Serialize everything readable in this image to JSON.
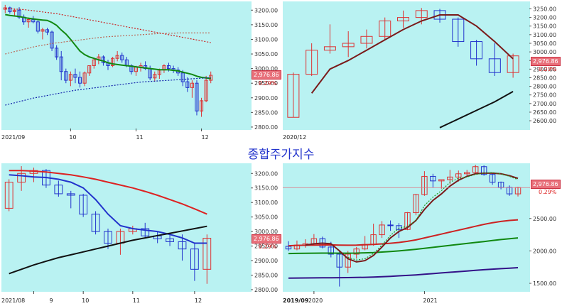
{
  "title": "종합주가지수",
  "current_value": "2,976.86",
  "change_pct": "0.29%",
  "colors": {
    "panel_bg": "#b9f2f2",
    "up": "#dd3333",
    "down": "#2233cc",
    "title": "#2233cc"
  },
  "chart_data": [
    {
      "type": "candlestick",
      "timeframe": "daily",
      "yticks": [
        "3200.00",
        "3150.00",
        "3100.00",
        "3050.00",
        "3000.00",
        "2950.00",
        "2900.00",
        "2850.00",
        "2800.00"
      ],
      "ylim": [
        2795,
        3225
      ],
      "xticks": [
        "2021/09",
        "10",
        "11",
        "12"
      ],
      "candles": [
        [
          3203,
          3218,
          3190,
          3208
        ],
        [
          3208,
          3212,
          3188,
          3195
        ],
        [
          3195,
          3205,
          3180,
          3200
        ],
        [
          3200,
          3210,
          3170,
          3176
        ],
        [
          3176,
          3185,
          3150,
          3160
        ],
        [
          3160,
          3175,
          3140,
          3168
        ],
        [
          3168,
          3180,
          3155,
          3160
        ],
        [
          3160,
          3165,
          3120,
          3128
        ],
        [
          3128,
          3140,
          3100,
          3133
        ],
        [
          3133,
          3140,
          3115,
          3125
        ],
        [
          3125,
          3130,
          3060,
          3070
        ],
        [
          3070,
          3080,
          3030,
          3040
        ],
        [
          3040,
          3060,
          2960,
          2990
        ],
        [
          2990,
          3000,
          2950,
          2960
        ],
        [
          2960,
          2990,
          2940,
          2980
        ],
        [
          2980,
          3000,
          2950,
          2970
        ],
        [
          2970,
          2990,
          2935,
          2950
        ],
        [
          2950,
          2990,
          2940,
          2985
        ],
        [
          2985,
          3010,
          2975,
          3010
        ],
        [
          3010,
          3035,
          3000,
          3030
        ],
        [
          3030,
          3050,
          3015,
          3040
        ],
        [
          3040,
          3045,
          3010,
          3020
        ],
        [
          3020,
          3030,
          2995,
          3010
        ],
        [
          3010,
          3040,
          3005,
          3035
        ],
        [
          3035,
          3060,
          3025,
          3045
        ],
        [
          3045,
          3055,
          3020,
          3030
        ],
        [
          3030,
          3040,
          3005,
          3010
        ],
        [
          3010,
          3015,
          2980,
          2990
        ],
        [
          2990,
          3010,
          2975,
          3005
        ],
        [
          3005,
          3020,
          2990,
          3010
        ],
        [
          3010,
          3025,
          2995,
          3000
        ],
        [
          3000,
          3010,
          2960,
          2968
        ],
        [
          2968,
          2990,
          2955,
          2980
        ],
        [
          2980,
          3000,
          2965,
          2995
        ],
        [
          2995,
          3015,
          2985,
          3010
        ],
        [
          3010,
          3020,
          2990,
          3000
        ],
        [
          3000,
          3010,
          2985,
          2995
        ],
        [
          2995,
          3005,
          2975,
          2985
        ],
        [
          2985,
          2995,
          2940,
          2955
        ],
        [
          2955,
          2970,
          2920,
          2935
        ],
        [
          2935,
          2960,
          2900,
          2950
        ],
        [
          2950,
          2960,
          2840,
          2855
        ],
        [
          2855,
          2900,
          2835,
          2890
        ],
        [
          2890,
          2975,
          2885,
          2960
        ],
        [
          2960,
          2990,
          2950,
          2977
        ]
      ],
      "series": [
        {
          "name": "",
          "color": "#118811",
          "values": [
            3185,
            3182,
            3180,
            3178,
            3175,
            3172,
            3170,
            3168,
            3166,
            3165,
            3158,
            3148,
            3132,
            3118,
            3100,
            3080,
            3060,
            3048,
            3040,
            3035,
            3030,
            3026,
            3020,
            3016,
            3014,
            3012,
            3010,
            3008,
            3006,
            3004,
            3002,
            3000,
            2998,
            2996,
            2996,
            2996,
            2994,
            2992,
            2988,
            2984,
            2980,
            2974,
            2970,
            2968,
            2966
          ]
        },
        {
          "name": "",
          "color": "#cc2222",
          "dash": true,
          "values": [
            3205,
            3205,
            3204,
            3203,
            3202,
            3200,
            3198,
            3196,
            3194,
            3192,
            3190,
            3188,
            3185,
            3182,
            3179,
            3176,
            3173,
            3170,
            3167,
            3164,
            3161,
            3158,
            3155,
            3152,
            3149,
            3146,
            3143,
            3140,
            3137,
            3134,
            3131,
            3128,
            3125,
            3122,
            3119,
            3116,
            3113,
            3110,
            3107,
            3104,
            3101,
            3098,
            3095,
            3092,
            3089
          ]
        },
        {
          "name": "",
          "color": "#bb6655",
          "dash": true,
          "values": [
            3050,
            3054,
            3058,
            3062,
            3066,
            3070,
            3074,
            3077,
            3080,
            3083,
            3086,
            3088,
            3090,
            3092,
            3094,
            3096,
            3098,
            3100,
            3102,
            3104,
            3106,
            3108,
            3109,
            3110,
            3111,
            3112,
            3113,
            3114,
            3115,
            3116,
            3117,
            3118,
            3119,
            3120,
            3120,
            3121,
            3121,
            3122,
            3122,
            3122,
            3122,
            3122,
            3122,
            3122,
            3122
          ]
        },
        {
          "name": "",
          "color": "#1122aa",
          "dash": true,
          "values": [
            2875,
            2879,
            2883,
            2887,
            2891,
            2895,
            2899,
            2902,
            2905,
            2908,
            2911,
            2914,
            2917,
            2920,
            2923,
            2926,
            2928,
            2930,
            2932,
            2934,
            2936,
            2938,
            2940,
            2942,
            2944,
            2946,
            2948,
            2950,
            2952,
            2954,
            2955,
            2956,
            2957,
            2958,
            2959,
            2960,
            2961,
            2962,
            2963,
            2964,
            2965,
            2966,
            2967,
            2968,
            2969
          ]
        }
      ]
    },
    {
      "type": "candlestick",
      "timeframe": "monthly",
      "yticks": [
        "3250.00",
        "3200.00",
        "3150.00",
        "3100.00",
        "3050.00",
        "3000.00",
        "2950.00",
        "2900.00",
        "2850.00",
        "2800.00",
        "2750.00",
        "2700.00",
        "2650.00",
        "2600.00"
      ],
      "ylim": [
        2555,
        3285
      ],
      "xticks": [
        "2020/12"
      ],
      "candles": [
        [
          2620,
          2880,
          2620,
          2870
        ],
        [
          2870,
          3050,
          2860,
          3010
        ],
        [
          3010,
          3160,
          2990,
          3030
        ],
        [
          3030,
          3120,
          2970,
          3050
        ],
        [
          3050,
          3130,
          3020,
          3090
        ],
        [
          3090,
          3200,
          3070,
          3180
        ],
        [
          3180,
          3240,
          3140,
          3200
        ],
        [
          3200,
          3255,
          3160,
          3240
        ],
        [
          3240,
          3250,
          3170,
          3190
        ],
        [
          3190,
          3200,
          3030,
          3060
        ],
        [
          3060,
          3070,
          2920,
          2960
        ],
        [
          2960,
          3050,
          2860,
          2880
        ],
        [
          2880,
          2990,
          2850,
          2977
        ]
      ],
      "series": [
        {
          "name": "",
          "color": "#7a1a1a",
          "values": [
            null,
            2760,
            2900,
            2950,
            3010,
            3070,
            3130,
            3180,
            3215,
            3215,
            3150,
            3060,
            2960
          ]
        },
        {
          "name": "",
          "color": "#111111",
          "values": [
            null,
            null,
            null,
            null,
            null,
            null,
            null,
            null,
            2560,
            2610,
            2660,
            2710,
            2770
          ]
        }
      ]
    },
    {
      "type": "candlestick",
      "timeframe": "weekly",
      "yticks": [
        "3200.00",
        "3150.00",
        "3100.00",
        "3050.00",
        "3000.00",
        "2950.00",
        "2900.00",
        "2850.00",
        "2800.00"
      ],
      "ylim": [
        2795,
        3230
      ],
      "xticks": [
        "2021/08",
        "9",
        "10",
        "11",
        "12"
      ],
      "candles": [
        [
          3080,
          3180,
          3070,
          3170
        ],
        [
          3170,
          3225,
          3140,
          3200
        ],
        [
          3200,
          3220,
          3170,
          3210
        ],
        [
          3210,
          3215,
          3150,
          3160
        ],
        [
          3160,
          3175,
          3120,
          3130
        ],
        [
          3130,
          3140,
          3080,
          3125
        ],
        [
          3125,
          3130,
          3050,
          3060
        ],
        [
          3060,
          3070,
          2990,
          3000
        ],
        [
          3000,
          3010,
          2940,
          2960
        ],
        [
          2960,
          3010,
          2920,
          3000
        ],
        [
          3000,
          3020,
          2990,
          3010
        ],
        [
          3010,
          3030,
          2980,
          2985
        ],
        [
          2985,
          3000,
          2960,
          2975
        ],
        [
          2975,
          2995,
          2950,
          2965
        ],
        [
          2965,
          2990,
          2900,
          2940
        ],
        [
          2940,
          2960,
          2830,
          2870
        ],
        [
          2870,
          2990,
          2820,
          2977
        ]
      ],
      "series": [
        {
          "name": "",
          "color": "#2233cc",
          "values": [
            3195,
            3192,
            3188,
            3186,
            3180,
            3170,
            3150,
            3110,
            3060,
            3020,
            3010,
            3005,
            3000,
            2990,
            2978,
            2960,
            2960
          ]
        },
        {
          "name": "",
          "color": "#dd2222",
          "values": [
            3210,
            3210,
            3208,
            3205,
            3200,
            3195,
            3188,
            3180,
            3170,
            3160,
            3150,
            3138,
            3125,
            3110,
            3095,
            3078,
            3060
          ]
        },
        {
          "name": "",
          "color": "#111111",
          "values": [
            2855,
            2870,
            2885,
            2898,
            2910,
            2920,
            2930,
            2940,
            2950,
            2960,
            2970,
            2978,
            2986,
            2994,
            3002,
            3010,
            3018
          ]
        }
      ]
    },
    {
      "type": "candlestick",
      "timeframe": "monthly",
      "yticks": [
        "2500.00",
        "2000.00",
        "1500.00"
      ],
      "ylim": [
        1380,
        3330
      ],
      "xticks": [
        "2019/09",
        "2020",
        "2021"
      ],
      "candles": [
        [
          2070,
          2150,
          2000,
          2030
        ],
        [
          2030,
          2160,
          2010,
          2090
        ],
        [
          2090,
          2180,
          2050,
          2110
        ],
        [
          2110,
          2260,
          2090,
          2190
        ],
        [
          2190,
          2220,
          2040,
          2060
        ],
        [
          2060,
          2140,
          1900,
          1950
        ],
        [
          1950,
          2000,
          1450,
          1750
        ],
        [
          1750,
          2000,
          1660,
          1950
        ],
        [
          1950,
          2060,
          1880,
          2030
        ],
        [
          2030,
          2230,
          2010,
          2100
        ],
        [
          2100,
          2420,
          2080,
          2250
        ],
        [
          2250,
          2460,
          2200,
          2400
        ],
        [
          2400,
          2470,
          2310,
          2390
        ],
        [
          2390,
          2430,
          2200,
          2330
        ],
        [
          2330,
          2600,
          2320,
          2590
        ],
        [
          2590,
          2880,
          2550,
          2870
        ],
        [
          2870,
          3230,
          2850,
          3150
        ],
        [
          3150,
          3190,
          2980,
          3080
        ],
        [
          3080,
          3090,
          2960,
          3100
        ],
        [
          3100,
          3250,
          3030,
          3140
        ],
        [
          3140,
          3240,
          3070,
          3190
        ],
        [
          3190,
          3250,
          3140,
          3210
        ],
        [
          3210,
          3330,
          3200,
          3300
        ],
        [
          3300,
          3320,
          3160,
          3180
        ],
        [
          3180,
          3200,
          3020,
          3060
        ],
        [
          3060,
          3070,
          2950,
          2980
        ],
        [
          2980,
          3010,
          2850,
          2880
        ],
        [
          2880,
          2990,
          2840,
          2977
        ]
      ],
      "series": [
        {
          "name": "",
          "color": "#cc2222",
          "values": [
            2080,
            2085,
            2088,
            2090,
            2092,
            2093,
            2090,
            2088,
            2090,
            2095,
            2100,
            2108,
            2118,
            2130,
            2148,
            2170,
            2200,
            2230,
            2260,
            2290,
            2320,
            2350,
            2380,
            2410,
            2435,
            2455,
            2470,
            2480
          ]
        },
        {
          "name": "",
          "color": "#118811",
          "values": [
            1960,
            1962,
            1963,
            1965,
            1966,
            1966,
            1965,
            1965,
            1966,
            1970,
            1975,
            1982,
            1990,
            2000,
            2012,
            2025,
            2040,
            2055,
            2070,
            2085,
            2100,
            2115,
            2130,
            2145,
            2160,
            2175,
            2188,
            2200
          ]
        },
        {
          "name": "",
          "color": "#331188",
          "values": [
            1580,
            1582,
            1583,
            1584,
            1585,
            1586,
            1587,
            1588,
            1590,
            1593,
            1597,
            1602,
            1608,
            1615,
            1622,
            1630,
            1640,
            1650,
            1660,
            1670,
            1680,
            1690,
            1700,
            1710,
            1718,
            1726,
            1734,
            1742
          ]
        },
        {
          "name": "",
          "color": "#7a1a1a",
          "values": [
            null,
            null,
            2090,
            2110,
            2120,
            2110,
            2000,
            1880,
            1830,
            1850,
            1930,
            2060,
            2200,
            2300,
            2360,
            2470,
            2640,
            2780,
            2880,
            3000,
            3090,
            3150,
            3190,
            3200,
            3200,
            3190,
            3160,
            3120
          ]
        },
        {
          "name": "",
          "color": "#229922",
          "dash": true,
          "values": [
            null,
            null,
            null,
            null,
            null,
            null,
            null,
            1900,
            1860,
            1880,
            1960,
            2090,
            2240,
            2350,
            2380,
            2470,
            2700,
            2830,
            2930,
            3060,
            3120,
            3140,
            3180,
            3200,
            3210,
            3190,
            3150,
            3100
          ]
        }
      ]
    }
  ]
}
